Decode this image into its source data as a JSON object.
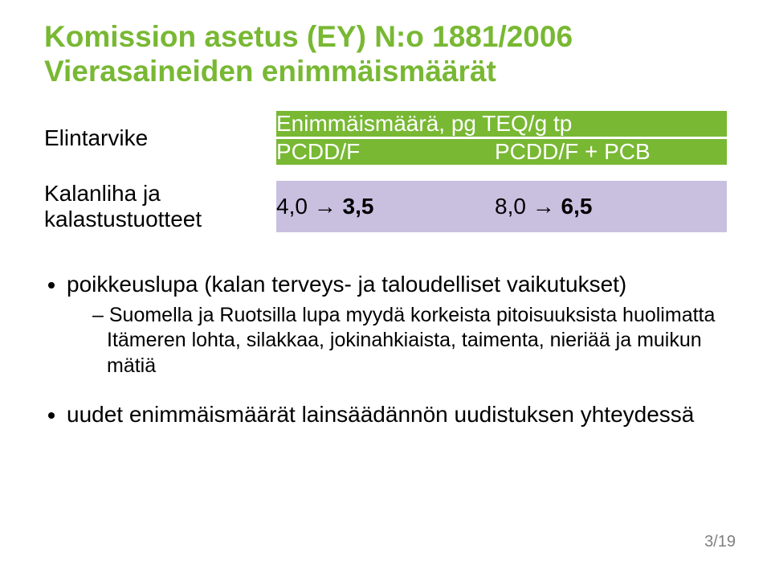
{
  "colors": {
    "accent_green": "#78b833",
    "header_bg": "#78b833",
    "cell_bg": "#c9c0e0",
    "text": "#000000",
    "page_num": "#808080",
    "white": "#ffffff"
  },
  "heading": {
    "line1": "Komission asetus (EY) N:o 1881/2006",
    "line2": "Vierasaineiden enimmäismäärät"
  },
  "table": {
    "row_header_label": "Elintarvike",
    "top_header": "Enimmäismäärä, pg TEQ/g tp",
    "sub_headers": [
      "PCDD/F",
      "PCDD/F + PCB"
    ],
    "data_row": {
      "label_line1": "Kalanliha ja",
      "label_line2": "kalastustuotteet",
      "val1_a": "4,0",
      "val1_b": "3,5",
      "val2_a": "8,0",
      "val2_b": "6,5",
      "arrow": "→"
    }
  },
  "bullets": {
    "item1": "poikkeuslupa (kalan terveys- ja taloudelliset vaikutukset)",
    "item1_sub": "Suomella ja Ruotsilla lupa myydä korkeista pitoisuuksista huolimatta Itämeren lohta, silakkaa, jokinahkiaista, taimenta, nieriää ja muikun mätiä",
    "item2": "uudet enimmäismäärät lainsäädännön uudistuksen yhteydessä"
  },
  "page_number": "3/19",
  "typography": {
    "heading_fontsize": 37,
    "table_fontsize": 28,
    "bullet_fontsize": 28,
    "subbullet_fontsize": 25,
    "pagenum_fontsize": 20
  }
}
